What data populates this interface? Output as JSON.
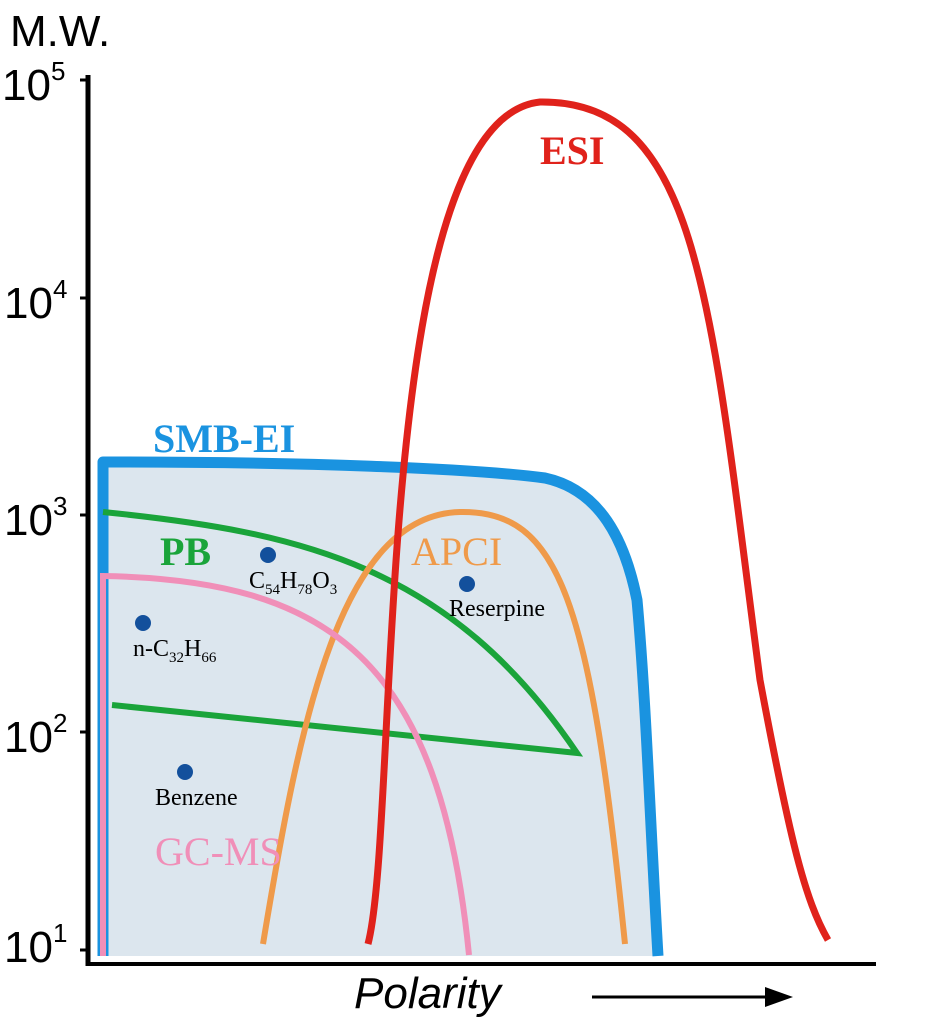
{
  "axes": {
    "y_label": "M.W.",
    "y_ticks": [
      {
        "base": "10",
        "exp": "5"
      },
      {
        "base": "10",
        "exp": "4"
      },
      {
        "base": "10",
        "exp": "3"
      },
      {
        "base": "10",
        "exp": "2"
      },
      {
        "base": "10",
        "exp": "1"
      }
    ],
    "x_label": "Polarity"
  },
  "regions": {
    "esi": {
      "label": "ESI",
      "color": "#e0221b"
    },
    "smb_ei": {
      "label": "SMB-EI",
      "color": "#1a93e0",
      "fill": "#dce6ee"
    },
    "apci": {
      "label": "APCI",
      "color": "#ef9a4a"
    },
    "pb": {
      "label": "PB",
      "color": "#1aa43a"
    },
    "gc_ms": {
      "label": "GC-MS",
      "color": "#f08fb8"
    }
  },
  "compounds": {
    "c54": {
      "parts": [
        "C",
        "54",
        "H",
        "78",
        "O",
        "3"
      ]
    },
    "reserpine": {
      "label": "Reserpine"
    },
    "nc32": {
      "parts": [
        "n-C",
        "32",
        "H",
        "66"
      ]
    },
    "benzene": {
      "label": "Benzene"
    },
    "dot_color": "#13509c"
  }
}
